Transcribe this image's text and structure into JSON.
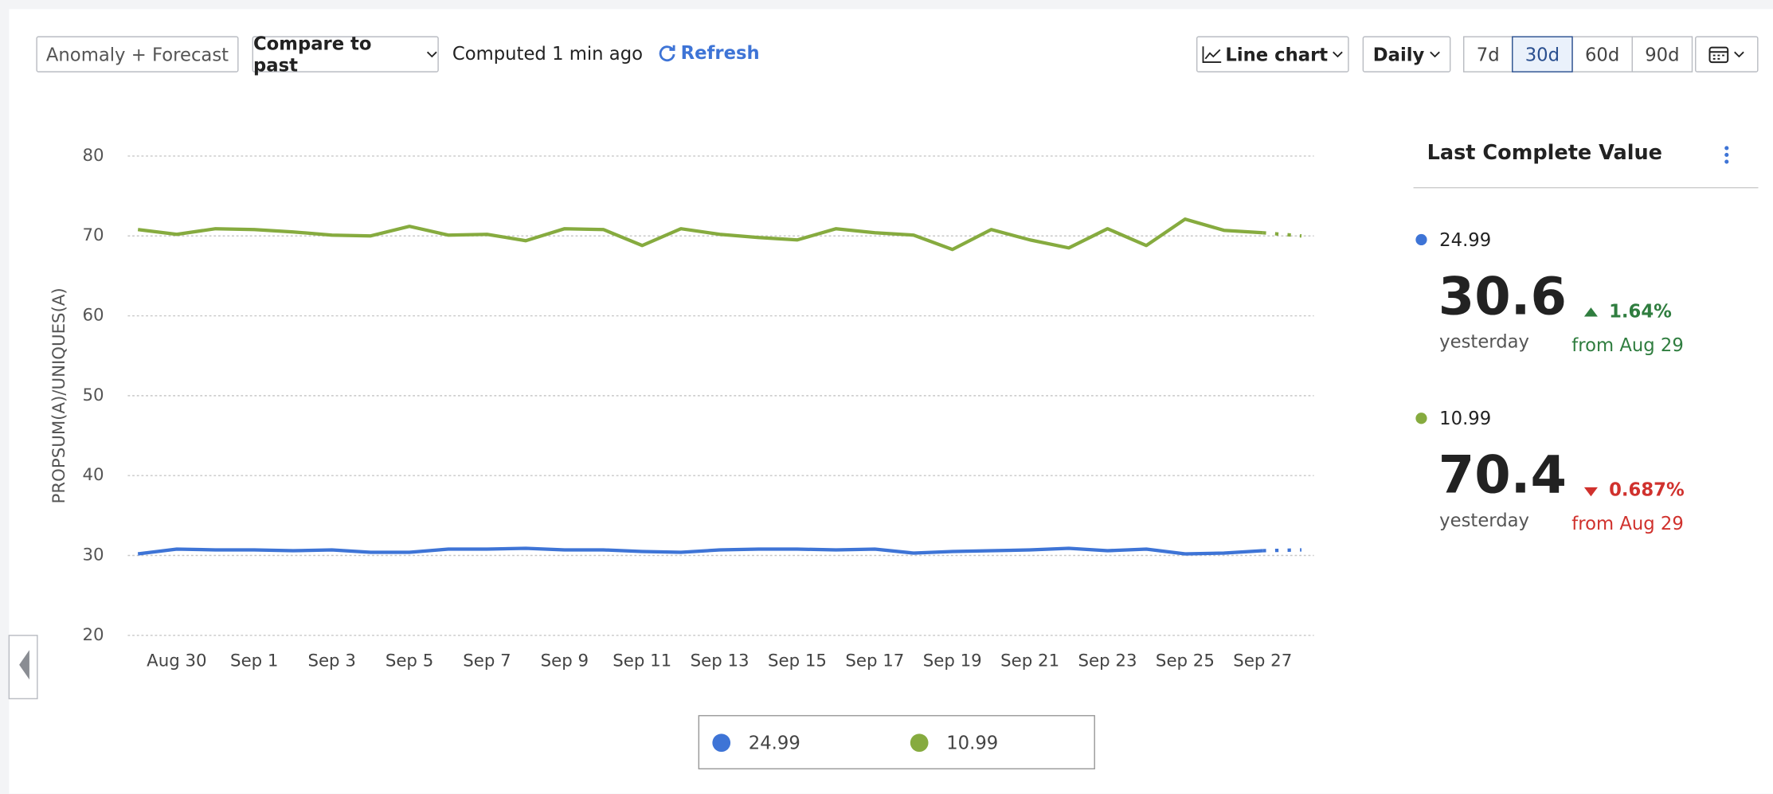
{
  "toolbar": {
    "mode": "Anomaly + Forecast",
    "compare": "Compare to past",
    "status": "Computed 1 min ago",
    "refresh": "Refresh",
    "chart_type": "Line chart",
    "interval": "Daily",
    "ranges": [
      "7d",
      "30d",
      "60d",
      "90d"
    ],
    "active_range": 1
  },
  "chart_data": {
    "type": "line",
    "y_label": "PROPSUM(A)/UNIQUES(A)",
    "categories": [
      null,
      "Aug 30",
      null,
      "Sep 1",
      null,
      "Sep 3",
      null,
      "Sep 5",
      null,
      "Sep 7",
      null,
      "Sep 9",
      null,
      "Sep 11",
      null,
      "Sep 13",
      null,
      "Sep 15",
      null,
      "Sep 17",
      null,
      "Sep 19",
      null,
      "Sep 21",
      null,
      "Sep 23",
      null,
      "Sep 25",
      null,
      "Sep 27",
      null
    ],
    "series": [
      {
        "name": "24.99",
        "color": "#3e74d6",
        "values": [
          30.2,
          30.8,
          30.7,
          30.7,
          30.6,
          30.7,
          30.4,
          30.4,
          30.8,
          30.8,
          30.9,
          30.7,
          30.7,
          30.5,
          30.4,
          30.7,
          30.8,
          30.8,
          30.7,
          30.8,
          30.3,
          30.5,
          30.6,
          30.7,
          30.9,
          30.6,
          30.8,
          30.2,
          30.3,
          30.6,
          30.7
        ]
      },
      {
        "name": "10.99",
        "color": "#86ab3f",
        "values": [
          70.8,
          70.2,
          70.9,
          70.8,
          70.5,
          70.1,
          70.0,
          71.2,
          70.1,
          70.2,
          69.4,
          70.9,
          70.8,
          68.8,
          70.9,
          70.2,
          69.8,
          69.5,
          70.9,
          70.4,
          70.1,
          68.3,
          70.8,
          69.5,
          68.5,
          70.9,
          68.8,
          72.1,
          70.7,
          70.4,
          70.0
        ]
      }
    ],
    "ylim": [
      20,
      80
    ],
    "yticks": [
      20,
      30,
      40,
      50,
      60,
      70,
      80
    ],
    "grid": true,
    "incomplete_last": true,
    "legend": "bottom"
  },
  "side_panel": {
    "title": "Last Complete Value",
    "items": [
      {
        "name": "24.99",
        "color": "#3e74d6",
        "value": "30.6",
        "period": "yesterday",
        "change": "1.64%",
        "direction": "up",
        "compare": "from Aug 29"
      },
      {
        "name": "10.99",
        "color": "#86ab3f",
        "value": "70.4",
        "period": "yesterday",
        "change": "0.687%",
        "direction": "down",
        "compare": "from Aug 29"
      }
    ]
  }
}
